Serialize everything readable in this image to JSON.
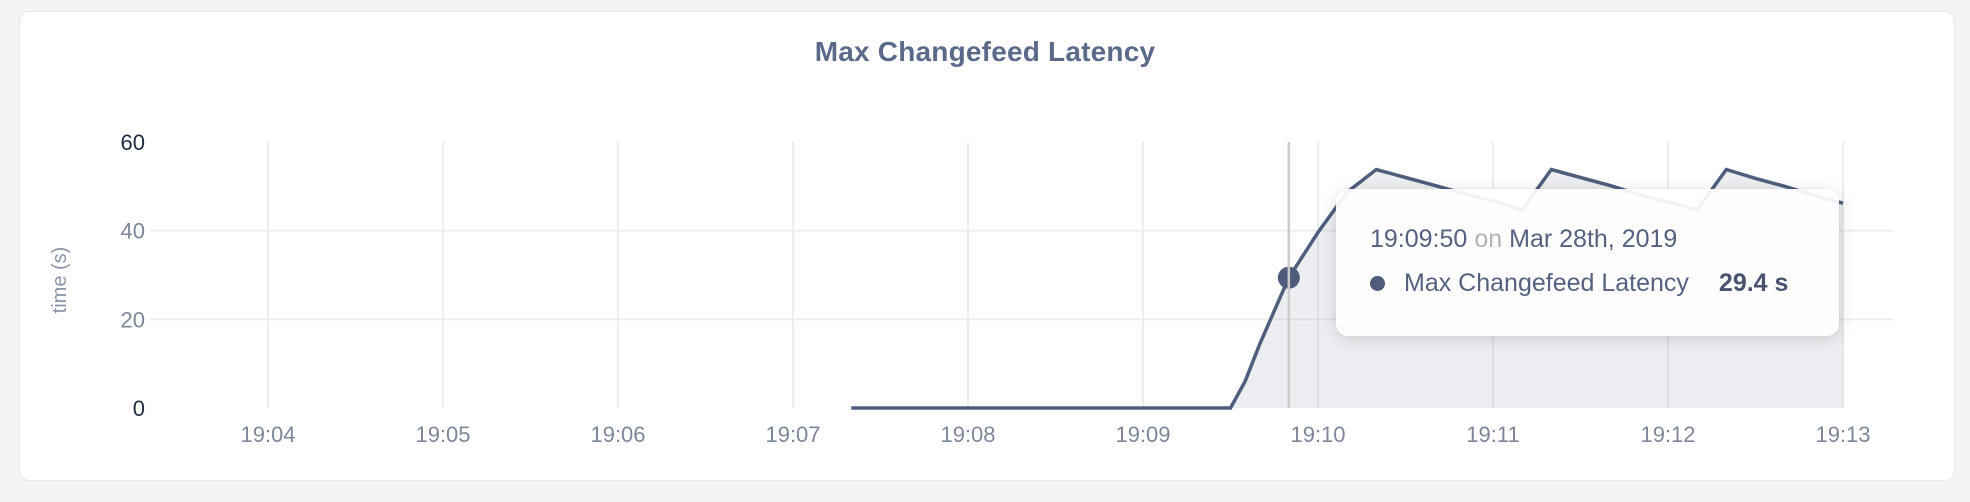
{
  "title": "Max Changefeed Latency",
  "colors": {
    "page_bg": "#f4f4f4",
    "card_bg": "#ffffff",
    "line": "#505e7e",
    "area_fill": "rgba(85,98,130,0.11)",
    "grid": "#ededed",
    "hover_line": "#cbcbcb",
    "dot": "#4e5b7a",
    "axis_strong": "#1e2a40",
    "axis_muted": "#7d8799",
    "ylabel_color": "#8a94a6",
    "title_color": "#5b6a89"
  },
  "chart_data": {
    "type": "area",
    "title": "Max Changefeed Latency",
    "xlabel": "",
    "ylabel": "time (s)",
    "ylim": [
      0,
      60
    ],
    "grid": true,
    "legend_position": "none",
    "x_ticks": [
      {
        "label": "19:04",
        "t": 240
      },
      {
        "label": "19:05",
        "t": 300
      },
      {
        "label": "19:06",
        "t": 360
      },
      {
        "label": "19:07",
        "t": 420
      },
      {
        "label": "19:08",
        "t": 480
      },
      {
        "label": "19:09",
        "t": 540
      },
      {
        "label": "19:10",
        "t": 600
      },
      {
        "label": "19:11",
        "t": 660
      },
      {
        "label": "19:12",
        "t": 720
      },
      {
        "label": "19:13",
        "t": 780
      }
    ],
    "y_ticks": [
      {
        "label": "0",
        "v": 0,
        "strong": true,
        "grid": false
      },
      {
        "label": "20",
        "v": 20,
        "strong": false,
        "grid": true
      },
      {
        "label": "40",
        "v": 40,
        "strong": false,
        "grid": true
      },
      {
        "label": "60",
        "v": 60,
        "strong": true,
        "grid": false
      }
    ],
    "series": [
      {
        "name": "Max Changefeed Latency",
        "unit": "s",
        "points": [
          [
            440,
            0
          ],
          [
            570,
            0
          ],
          [
            575,
            6
          ],
          [
            580,
            14.4
          ],
          [
            590,
            29.4
          ],
          [
            600,
            39.6
          ],
          [
            610,
            48.7
          ],
          [
            620,
            53.8
          ],
          [
            630,
            52.0
          ],
          [
            640,
            50.2
          ],
          [
            650,
            48.4
          ],
          [
            660,
            46.7
          ],
          [
            670,
            44.7
          ],
          [
            680,
            53.8
          ],
          [
            690,
            52.0
          ],
          [
            700,
            50.2
          ],
          [
            710,
            48.2
          ],
          [
            720,
            46.4
          ],
          [
            730,
            44.7
          ],
          [
            740,
            53.8
          ],
          [
            750,
            51.8
          ],
          [
            760,
            50.0
          ],
          [
            770,
            48.0
          ],
          [
            780,
            46.2
          ]
        ]
      }
    ]
  },
  "tooltip": {
    "time": "19:09:50",
    "conj": "on",
    "date": "Mar 28th, 2019",
    "series_label": "Max Changefeed Latency",
    "value": "29.4 s",
    "highlight_t": 590,
    "highlight_v": 29.4
  }
}
